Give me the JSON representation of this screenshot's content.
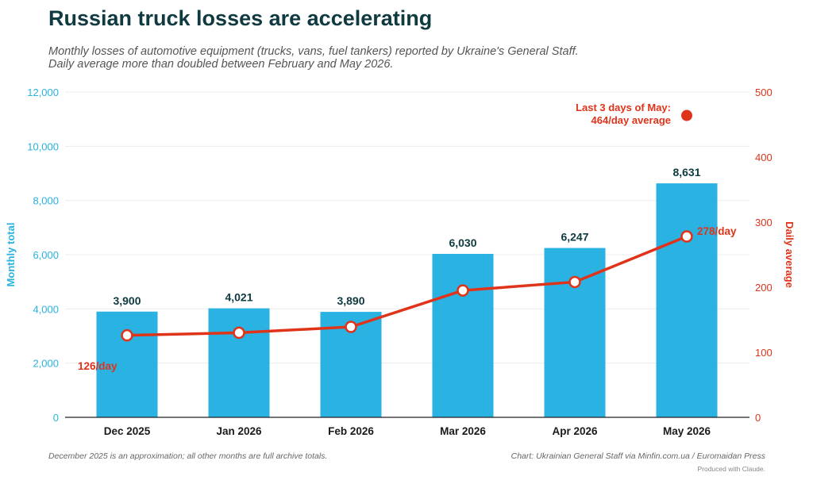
{
  "header": {
    "title": "Russian truck losses are accelerating",
    "subtitle_line1": "Monthly losses of automotive equipment (trucks, vans, fuel tankers) reported by Ukraine's General Staff.",
    "subtitle_line2": "Daily average more than doubled between February and May 2026."
  },
  "footer": {
    "note": "December 2025 is an approximation; all other months are full archive totals.",
    "source": "Chart: Ukrainian General Staff via Minfin.com.ua / Euromaidan Press",
    "produced": "Produced with Claude."
  },
  "colors": {
    "bar": "#29b2e2",
    "line": "#e0341a",
    "left_axis": "#29b2e2",
    "right_axis": "#e0341a",
    "label": "#0f3a40"
  },
  "chart_data": {
    "type": "bar",
    "categories": [
      "Dec 2025",
      "Jan 2026",
      "Feb 2026",
      "Mar 2026",
      "Apr 2026",
      "May 2026"
    ],
    "series": [
      {
        "name": "Monthly total",
        "axis": "left",
        "type": "bar",
        "values": [
          3900,
          4021,
          3890,
          6030,
          6247,
          8631
        ],
        "labels": [
          "3,900",
          "4,021",
          "3,890",
          "6,030",
          "6,247",
          "8,631"
        ]
      },
      {
        "name": "Daily average",
        "axis": "right",
        "type": "line",
        "values": [
          126,
          130,
          139,
          195,
          208,
          278
        ]
      }
    ],
    "ylabel_left": "Monthly total",
    "ylabel_right": "Daily average",
    "ylim_left": [
      0,
      12000
    ],
    "ylim_right": [
      0,
      500
    ],
    "yticks_left": [
      "0",
      "2,000",
      "4,000",
      "6,000",
      "8,000",
      "10,000",
      "12,000"
    ],
    "yticks_right": [
      "0",
      "100",
      "200",
      "300",
      "400",
      "500"
    ],
    "grid": true,
    "annotations": {
      "first_point_label": "126/day",
      "last_point_label": "278/day",
      "extra_point": {
        "value": 464,
        "label_line1": "Last 3 days of May:",
        "label_line2": "464/day average"
      }
    }
  }
}
